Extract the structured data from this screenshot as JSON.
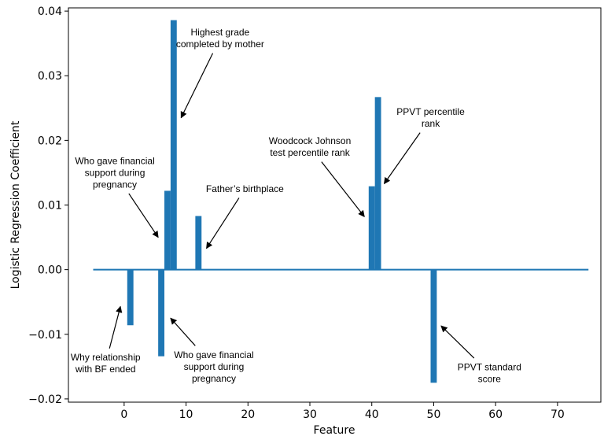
{
  "chart_data": {
    "type": "bar",
    "xlabel": "Feature",
    "ylabel": "Logistic Regression Coefficient",
    "xlim": [
      -9,
      77
    ],
    "ylim": [
      -0.0205,
      0.0405
    ],
    "xticks": [
      0,
      10,
      20,
      30,
      40,
      50,
      60,
      70
    ],
    "yticks": [
      -0.02,
      -0.01,
      0.0,
      0.01,
      0.02,
      0.03,
      0.04
    ],
    "ytick_labels": [
      "−0.02",
      "−0.01",
      "0.00",
      "0.01",
      "0.02",
      "0.03",
      "0.04"
    ],
    "xtick_labels": [
      "0",
      "10",
      "20",
      "30",
      "40",
      "50",
      "60",
      "70"
    ],
    "grid": false,
    "bar_color": "#1f77b4",
    "baseline": {
      "x_start": -5,
      "x_end": 75,
      "y": 0.0
    },
    "bars": [
      {
        "x": 1,
        "value": -0.0086
      },
      {
        "x": 6,
        "value": -0.0134
      },
      {
        "x": 7,
        "value": 0.0122
      },
      {
        "x": 8,
        "value": 0.0386
      },
      {
        "x": 12,
        "value": 0.0083
      },
      {
        "x": 40,
        "value": 0.0129
      },
      {
        "x": 41,
        "value": 0.0267
      },
      {
        "x": 50,
        "value": -0.0175
      }
    ],
    "annotations": [
      {
        "lines": [
          "Highest grade",
          "completed by mother"
        ],
        "text_at": [
          15.5,
          0.0358
        ],
        "arrow_to": [
          9.2,
          0.0235
        ]
      },
      {
        "lines": [
          "Who gave financial",
          "support during",
          "pregnancy"
        ],
        "text_at": [
          -1.5,
          0.015
        ],
        "arrow_to": [
          5.5,
          0.005
        ]
      },
      {
        "lines": [
          "Father’s birthplace"
        ],
        "text_at": [
          19.5,
          0.0125
        ],
        "arrow_to": [
          13.3,
          0.0033
        ]
      },
      {
        "lines": [
          "Woodcock Johnson",
          "test percentile rank"
        ],
        "text_at": [
          30.0,
          0.019
        ],
        "arrow_to": [
          38.8,
          0.0082
        ]
      },
      {
        "lines": [
          "PPVT percentile",
          "rank"
        ],
        "text_at": [
          49.5,
          0.0235
        ],
        "arrow_to": [
          42.0,
          0.0133
        ]
      },
      {
        "lines": [
          "Why relationship",
          "with BF ended"
        ],
        "text_at": [
          -3.0,
          -0.0145
        ],
        "arrow_to": [
          -0.6,
          -0.0057
        ]
      },
      {
        "lines": [
          "Who gave financial",
          "support during",
          "pregnancy"
        ],
        "text_at": [
          14.5,
          -0.015
        ],
        "arrow_to": [
          7.5,
          -0.0075
        ]
      },
      {
        "lines": [
          "PPVT standard",
          "score"
        ],
        "text_at": [
          59.0,
          -0.016
        ],
        "arrow_to": [
          51.2,
          -0.0087
        ]
      }
    ]
  }
}
